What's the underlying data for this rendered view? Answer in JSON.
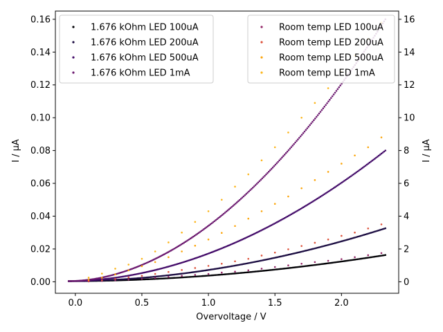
{
  "chart_data": {
    "type": "scatter",
    "xlabel": "Overvoltage / V",
    "ylabel_left": "I / µA",
    "ylabel_right": "I / µA",
    "xlim": [
      -0.15,
      2.43
    ],
    "ylim_left": [
      -0.007,
      0.165
    ],
    "ylim_right": [
      -0.7,
      16.5
    ],
    "x_ticks": [
      0.0,
      0.5,
      1.0,
      1.5,
      2.0
    ],
    "x_tick_labels": [
      "0.0",
      "0.5",
      "1.0",
      "1.5",
      "2.0"
    ],
    "y_left_ticks": [
      0.0,
      0.02,
      0.04,
      0.06,
      0.08,
      0.1,
      0.12,
      0.14,
      0.16
    ],
    "y_left_tick_labels": [
      "0.00",
      "0.02",
      "0.04",
      "0.06",
      "0.08",
      "0.10",
      "0.12",
      "0.14",
      "0.16"
    ],
    "y_right_ticks": [
      0,
      2,
      4,
      6,
      8,
      10,
      12,
      14,
      16
    ],
    "y_right_tick_labels": [
      "0",
      "2",
      "4",
      "6",
      "8",
      "10",
      "12",
      "14",
      "16"
    ],
    "legend_left_placement": "upper-left",
    "legend_right_placement": "upper-right",
    "series_left": [
      {
        "name": "1.676 kOhm LED 100uA",
        "color": "#000004",
        "x_start": -0.05,
        "x_end": 2.33,
        "n": 240,
        "y_at_x_end": 0.0163,
        "exponent": 1.9,
        "axis": "left"
      },
      {
        "name": "1.676 kOhm LED 200uA",
        "color": "#1b0c41",
        "x_start": -0.05,
        "x_end": 2.33,
        "n": 240,
        "y_at_x_end": 0.0326,
        "exponent": 1.9,
        "axis": "left"
      },
      {
        "name": "1.676 kOhm LED 500uA",
        "color": "#420a68",
        "x_start": -0.05,
        "x_end": 2.33,
        "n": 240,
        "y_at_x_end": 0.08,
        "exponent": 1.9,
        "axis": "left"
      },
      {
        "name": "1.676 kOhm LED 1mA",
        "color": "#6a176e",
        "x_start": -0.05,
        "x_end": 2.33,
        "n": 240,
        "y_at_x_end": 0.16,
        "exponent": 1.9,
        "axis": "left"
      }
    ],
    "series_right": [
      {
        "name": "Room temp LED 100uA",
        "color": "#932667",
        "x": [
          0.1,
          0.2,
          0.3,
          0.4,
          0.5,
          0.6,
          0.7,
          0.8,
          0.9,
          1.0,
          1.1,
          1.2,
          1.3,
          1.4,
          1.5,
          1.6,
          1.7,
          1.8,
          1.9,
          2.0,
          2.1,
          2.2,
          2.3
        ],
        "y": [
          0.02,
          0.05,
          0.09,
          0.13,
          0.18,
          0.24,
          0.3,
          0.36,
          0.42,
          0.48,
          0.56,
          0.62,
          0.7,
          0.8,
          0.9,
          1.0,
          1.1,
          1.2,
          1.28,
          1.38,
          1.5,
          1.62,
          1.75
        ]
      },
      {
        "name": "Room temp LED 200uA",
        "color": "#dd513a",
        "x": [
          0.1,
          0.2,
          0.3,
          0.4,
          0.5,
          0.6,
          0.7,
          0.8,
          0.9,
          1.0,
          1.1,
          1.2,
          1.3,
          1.4,
          1.5,
          1.6,
          1.7,
          1.8,
          1.9,
          2.0,
          2.1,
          2.2,
          2.3
        ],
        "y": [
          0.05,
          0.1,
          0.18,
          0.27,
          0.36,
          0.48,
          0.6,
          0.72,
          0.84,
          0.97,
          1.1,
          1.25,
          1.4,
          1.6,
          1.78,
          1.98,
          2.18,
          2.38,
          2.58,
          2.8,
          3.0,
          3.25,
          3.5
        ]
      },
      {
        "name": "Room temp LED 500uA",
        "color": "#fca50a",
        "x": [
          0.1,
          0.2,
          0.3,
          0.4,
          0.5,
          0.6,
          0.7,
          0.8,
          0.9,
          1.0,
          1.1,
          1.2,
          1.3,
          1.4,
          1.5,
          1.6,
          1.7,
          1.8,
          1.9,
          2.0,
          2.1,
          2.2,
          2.3
        ],
        "y": [
          0.12,
          0.25,
          0.45,
          0.7,
          0.95,
          1.2,
          1.5,
          1.85,
          2.2,
          2.58,
          2.98,
          3.4,
          3.85,
          4.3,
          4.75,
          5.2,
          5.7,
          6.2,
          6.7,
          7.2,
          7.7,
          8.2,
          8.8
        ]
      },
      {
        "name": "Room temp LED 1mA",
        "color": "#fcb519",
        "x": [
          0.1,
          0.2,
          0.3,
          0.4,
          0.5,
          0.6,
          0.7,
          0.8,
          0.9,
          1.0,
          1.1,
          1.2,
          1.3,
          1.4,
          1.5,
          1.6,
          1.7,
          1.8,
          1.9,
          2.0,
          2.1,
          2.2,
          2.3
        ],
        "y": [
          0.25,
          0.5,
          0.8,
          1.05,
          1.4,
          1.85,
          2.4,
          3.0,
          3.65,
          4.3,
          5.0,
          5.8,
          6.55,
          7.4,
          8.2,
          9.1,
          10.0,
          10.9,
          11.8,
          12.8,
          13.8,
          14.8,
          15.8
        ]
      }
    ]
  }
}
